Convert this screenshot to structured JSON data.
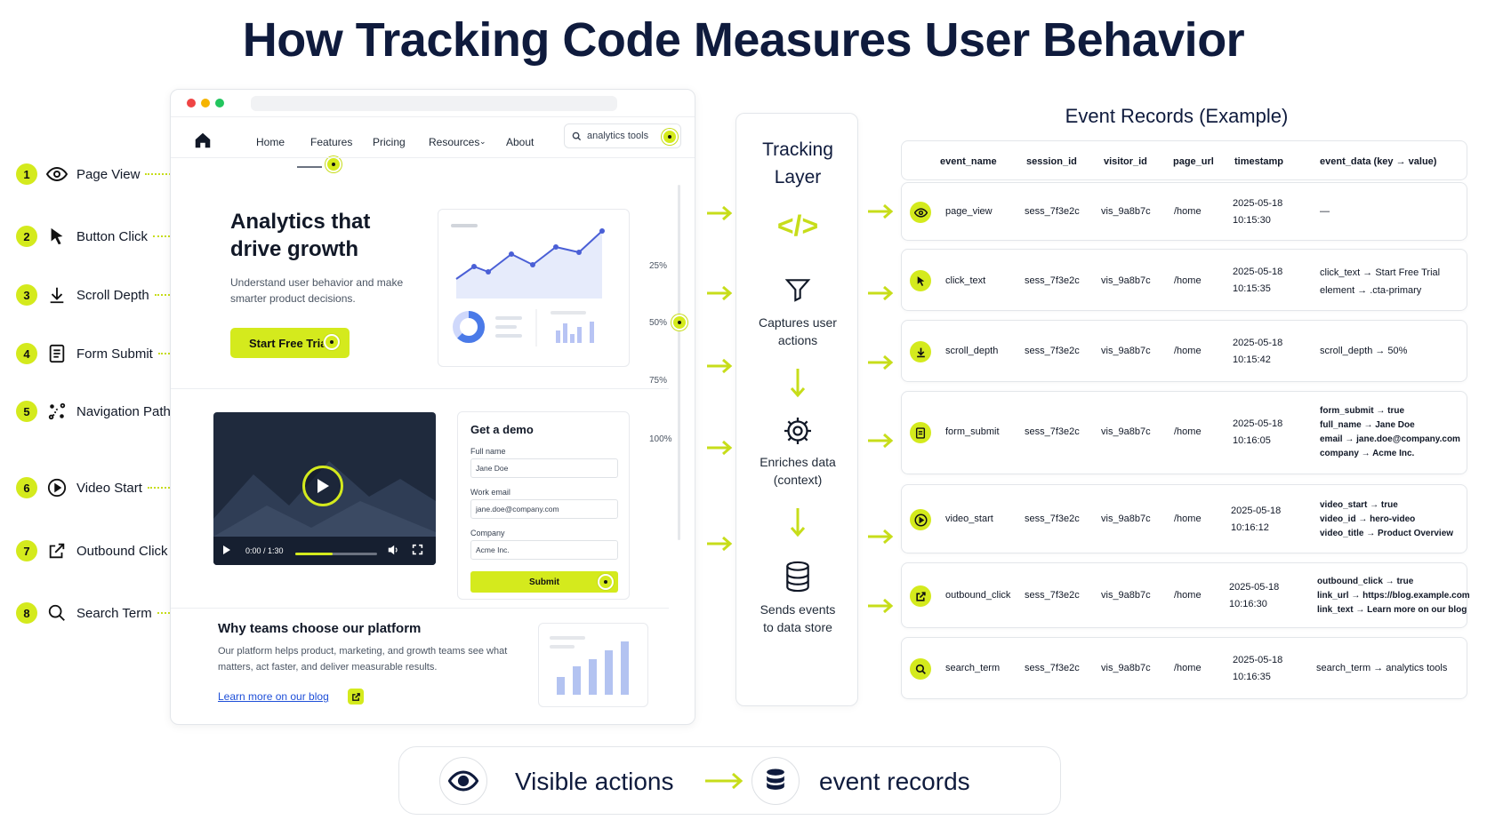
{
  "title": "How Tracking Code Measures User Behavior",
  "legend": [
    {
      "num": "1",
      "label": "Page View",
      "icon": "eye-icon"
    },
    {
      "num": "2",
      "label": "Button Click",
      "icon": "cursor-icon"
    },
    {
      "num": "3",
      "label": "Scroll Depth",
      "icon": "download-arrow-icon"
    },
    {
      "num": "4",
      "label": "Form Submit",
      "icon": "document-icon"
    },
    {
      "num": "5",
      "label": "Navigation Path",
      "icon": "path-icon"
    },
    {
      "num": "6",
      "label": "Video Start",
      "icon": "play-circle-icon"
    },
    {
      "num": "7",
      "label": "Outbound Click",
      "icon": "external-link-icon"
    },
    {
      "num": "8",
      "label": "Search Term",
      "icon": "search-icon"
    }
  ],
  "browser": {
    "nav": [
      "Home",
      "Features",
      "Pricing",
      "Resources",
      "About"
    ],
    "search_value": "analytics tools",
    "hero_title": "Analytics that drive growth",
    "hero_sub": "Understand user behavior and make smarter product decisions.",
    "cta_label": "Start Free Trial",
    "scroll_marks": [
      "25%",
      "50%",
      "75%",
      "100%"
    ],
    "video_time": "0:00 / 1:30",
    "demo": {
      "title": "Get a demo",
      "fields": [
        {
          "label": "Full name",
          "value": "Jane Doe"
        },
        {
          "label": "Work email",
          "value": "jane.doe@company.com"
        },
        {
          "label": "Company",
          "value": "Acme Inc."
        }
      ],
      "submit": "Submit"
    },
    "why_title": "Why teams choose our platform",
    "why_body": "Our platform helps product, marketing, and growth teams see what matters, act faster, and deliver measurable results.",
    "why_link": "Learn more on our blog"
  },
  "tracking": {
    "title": "Tracking Layer",
    "code_glyph": "</>",
    "step1": "Captures user actions",
    "step2": "Enriches data (context)",
    "step3": "Sends events to data store"
  },
  "events": {
    "title": "Event Records (Example)",
    "headers": [
      "event_name",
      "session_id",
      "visitor_id",
      "page_url",
      "timestamp",
      "event_data (key → value)"
    ],
    "rows": [
      {
        "icon": "eye-icon",
        "name": "page_view",
        "session": "sess_7f3e2c",
        "visitor": "vis_9a8b7c",
        "url": "/home",
        "date": "2025-05-18",
        "time": "10:15:30",
        "data": [
          "—"
        ]
      },
      {
        "icon": "cursor-icon",
        "name": "click_text",
        "session": "sess_7f3e2c",
        "visitor": "vis_9a8b7c",
        "url": "/home",
        "date": "2025-05-18",
        "time": "10:15:35",
        "data": [
          "click_text → Start Free Trial",
          "element → .cta-primary"
        ]
      },
      {
        "icon": "download-arrow-icon",
        "name": "scroll_depth",
        "session": "sess_7f3e2c",
        "visitor": "vis_9a8b7c",
        "url": "/home",
        "date": "2025-05-18",
        "time": "10:15:42",
        "data": [
          "scroll_depth → 50%"
        ]
      },
      {
        "icon": "document-icon",
        "name": "form_submit",
        "session": "sess_7f3e2c",
        "visitor": "vis_9a8b7c",
        "url": "/home",
        "date": "2025-05-18",
        "time": "10:16:05",
        "data": [
          "form_submit → true",
          "full_name → Jane Doe",
          "email → jane.doe@company.com",
          "company → Acme Inc."
        ]
      },
      {
        "icon": "play-circle-icon",
        "name": "video_start",
        "session": "sess_7f3e2c",
        "visitor": "vis_9a8b7c",
        "url": "/home",
        "date": "2025-05-18",
        "time": "10:16:12",
        "data": [
          "video_start → true",
          "video_id → hero-video",
          "video_title → Product Overview"
        ]
      },
      {
        "icon": "external-link-icon",
        "name": "outbound_click",
        "session": "sess_7f3e2c",
        "visitor": "vis_9a8b7c",
        "url": "/home",
        "date": "2025-05-18",
        "time": "10:16:30",
        "data": [
          "outbound_click → true",
          "link_url → https://blog.example.com",
          "link_text → Learn more on our blog"
        ]
      },
      {
        "icon": "search-icon",
        "name": "search_term",
        "session": "sess_7f3e2c",
        "visitor": "vis_9a8b7c",
        "url": "/home",
        "date": "2025-05-18",
        "time": "10:16:35",
        "data": [
          "search_term → analytics tools"
        ]
      }
    ]
  },
  "bottom": {
    "left": "Visible actions",
    "right": "event records"
  },
  "colors": {
    "accent": "#d4ea1d",
    "title": "#0f1b3d",
    "link": "#1e4fd8",
    "video_bg": "#1f2a3d"
  }
}
